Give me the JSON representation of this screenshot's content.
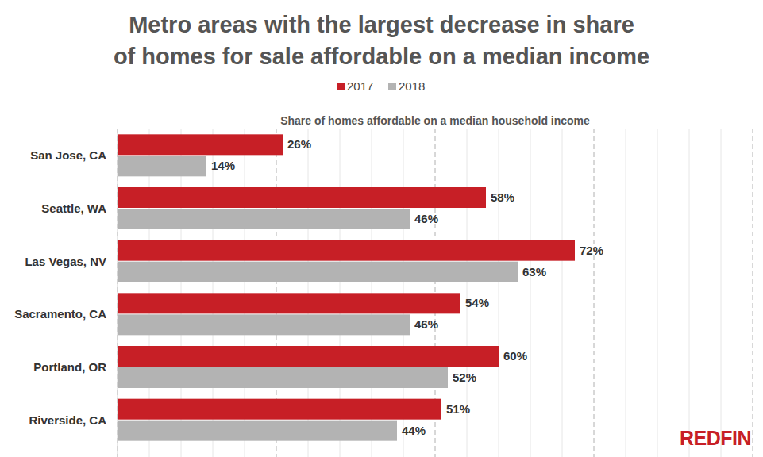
{
  "chart_data": {
    "type": "bar",
    "orientation": "horizontal",
    "title": "Metro areas with the largest decrease in share of homes for sale affordable on a median income",
    "subtitle": "Share of homes affordable on a median household income",
    "brand": "REDFIN",
    "categories": [
      "San Jose, CA",
      "Seattle, WA",
      "Las Vegas, NV",
      "Sacramento, CA",
      "Portland, OR",
      "Riverside, CA"
    ],
    "series": [
      {
        "name": "2017",
        "color": "#c71f26",
        "values": [
          26,
          58,
          72,
          54,
          60,
          51
        ],
        "value_labels": [
          "26%",
          "58%",
          "72%",
          "54%",
          "60%",
          "51%"
        ]
      },
      {
        "name": "2018",
        "color": "#b3b3b3",
        "values": [
          14,
          46,
          63,
          46,
          52,
          44
        ],
        "value_labels": [
          "14%",
          "46%",
          "63%",
          "46%",
          "52%",
          "44%"
        ]
      }
    ],
    "xlim": [
      0,
      100
    ],
    "xticks": [
      0,
      5,
      10,
      15,
      20,
      25,
      30,
      35,
      40,
      45,
      50,
      55,
      60,
      65,
      70,
      75,
      80,
      85,
      90,
      95,
      100
    ],
    "grid": true,
    "tick_labels": false,
    "data_labels": true,
    "legend": "top"
  }
}
